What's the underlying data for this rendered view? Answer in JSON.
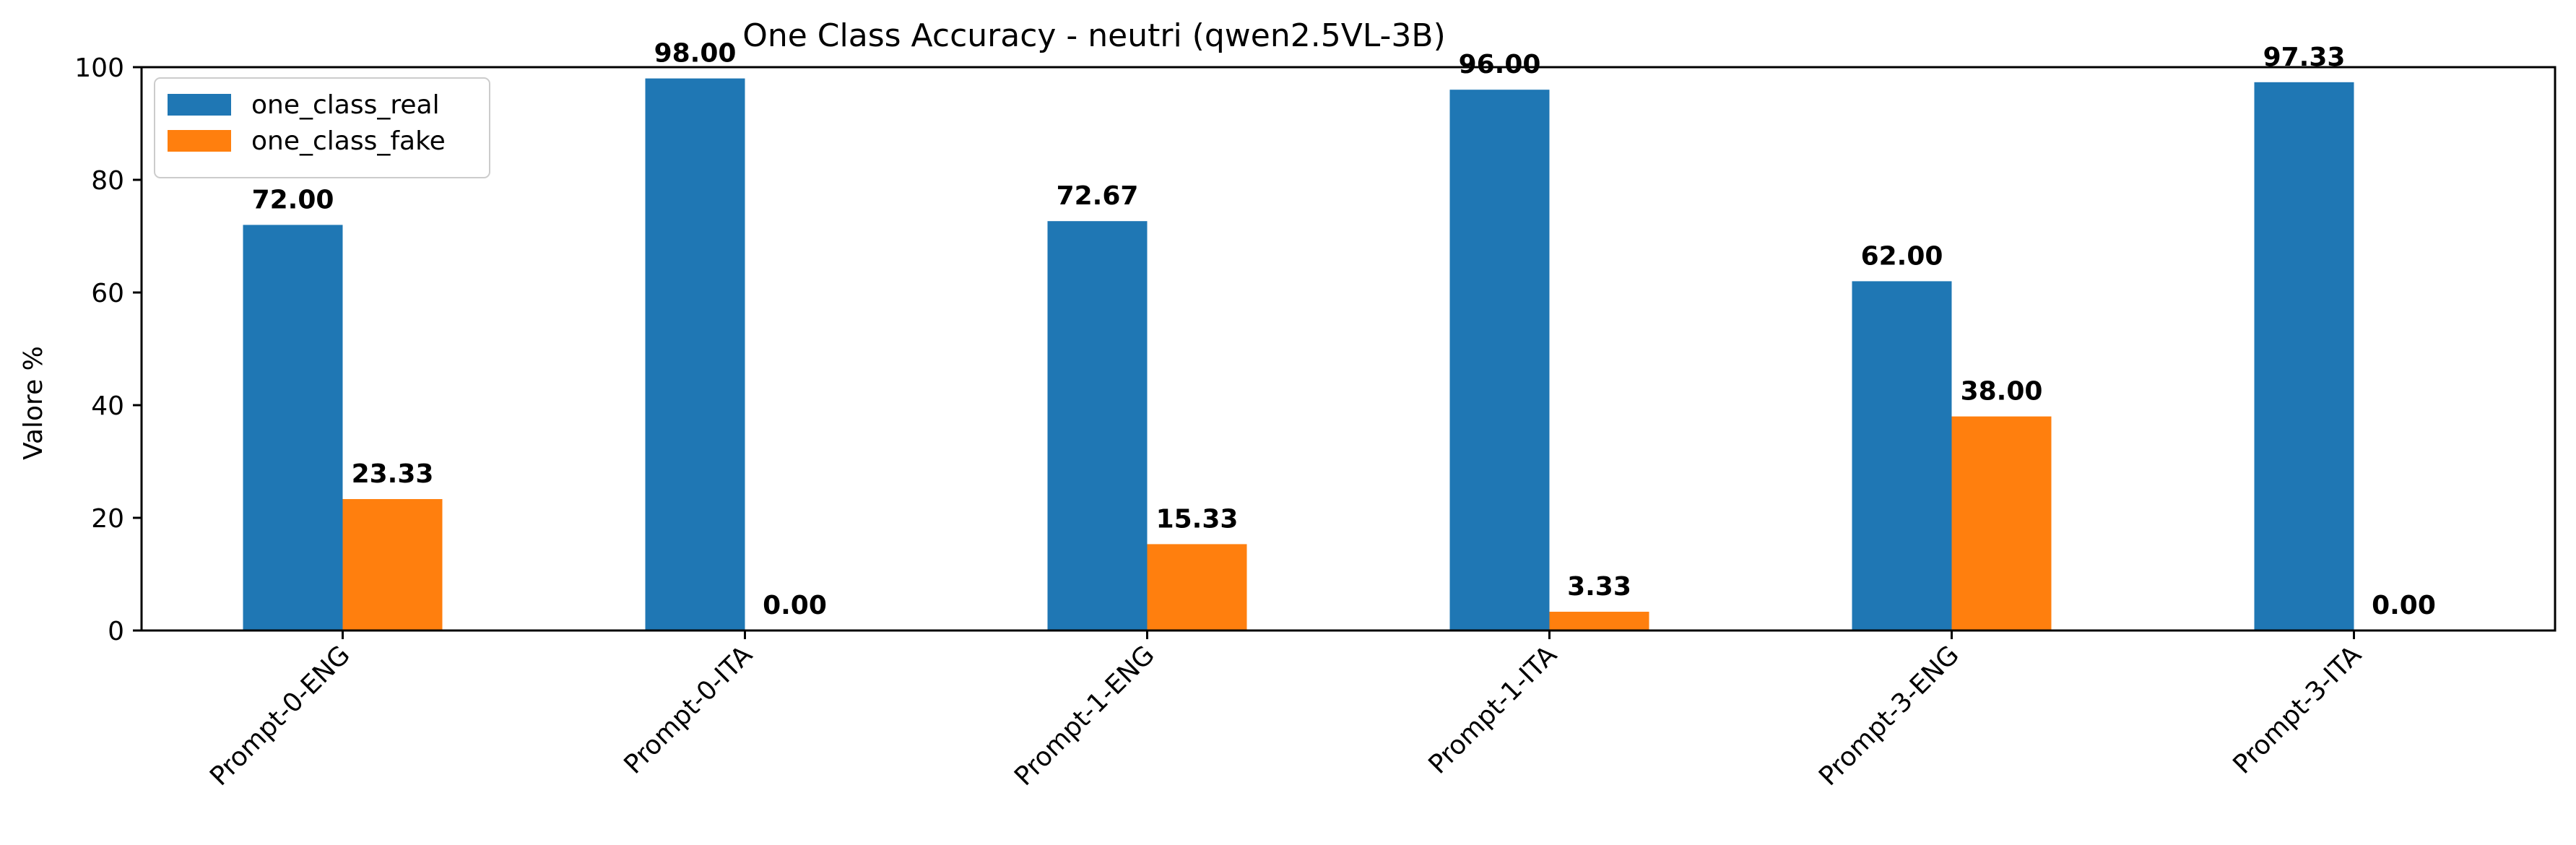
{
  "chart_data": {
    "type": "bar",
    "title": "One Class Accuracy - neutri (qwen2.5VL-3B)",
    "xlabel": "",
    "ylabel": "Valore %",
    "ylim": [
      0,
      100
    ],
    "yticks": [
      0,
      20,
      40,
      60,
      80,
      100
    ],
    "grid": false,
    "legend_position": "top-left",
    "categories": [
      "Prompt-0-ENG",
      "Prompt-0-ITA",
      "Prompt-1-ENG",
      "Prompt-1-ITA",
      "Prompt-3-ENG",
      "Prompt-3-ITA"
    ],
    "series": [
      {
        "name": "one_class_real",
        "color": "#1f77b4",
        "values": [
          72.0,
          98.0,
          72.67,
          96.0,
          62.0,
          97.33
        ],
        "labels": [
          "72.00",
          "98.00",
          "72.67",
          "96.00",
          "62.00",
          "97.33"
        ]
      },
      {
        "name": "one_class_fake",
        "color": "#ff7f0e",
        "values": [
          23.33,
          0.0,
          15.33,
          3.33,
          38.0,
          0.0
        ],
        "labels": [
          "23.33",
          "0.00",
          "15.33",
          "3.33",
          "38.00",
          "0.00"
        ]
      }
    ]
  }
}
